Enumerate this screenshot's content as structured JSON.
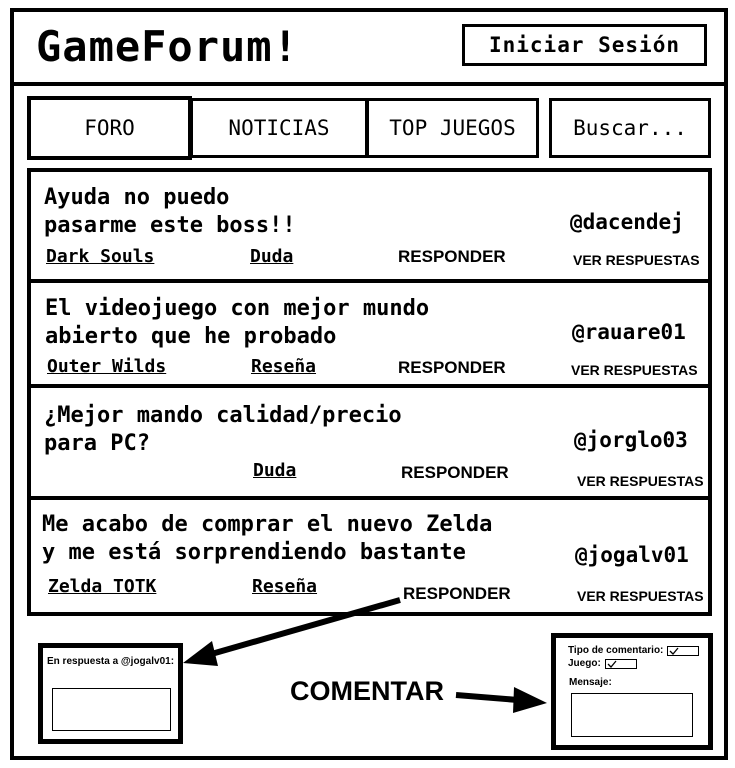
{
  "header": {
    "title": "GameForum!",
    "login_label": "Iniciar Sesión"
  },
  "tabs": {
    "foro": "FORO",
    "noticias": "NOTICIAS",
    "top": "TOP JUEGOS",
    "search": "Buscar..."
  },
  "posts": [
    {
      "title": "Ayuda no puedo\npasarme este boss!!",
      "user": "@dacendej",
      "game": "Dark Souls",
      "category": "Duda",
      "reply": "RESPONDER",
      "view": "VER RESPUESTAS"
    },
    {
      "title": "El videojuego con mejor mundo\nabierto que he probado",
      "user": "@rauare01",
      "game": "Outer Wilds",
      "category": "Reseña",
      "reply": "RESPONDER",
      "view": "VER RESPUESTAS"
    },
    {
      "title": "¿Mejor mando calidad/precio\npara PC?",
      "user": "@jorglo03",
      "game": "",
      "category": "Duda",
      "reply": "RESPONDER",
      "view": "VER RESPUESTAS"
    },
    {
      "title": "Me acabo de comprar el nuevo Zelda\ny me está sorprendiendo bastante",
      "user": "@jogalv01",
      "game": "Zelda TOTK",
      "category": "Reseña",
      "reply": "RESPONDER",
      "view": "VER RESPUESTAS"
    }
  ],
  "reply_panel": {
    "label": "En respuesta a @jogalv01:"
  },
  "comment_panel": {
    "type_label": "Tipo de comentario:",
    "game_label": "Juego:",
    "message_label": "Mensaje:"
  },
  "comment_action": "COMENTAR"
}
